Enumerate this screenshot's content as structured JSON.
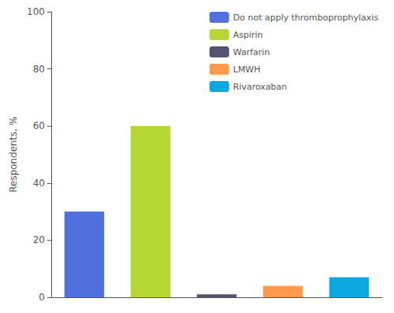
{
  "chart_data": {
    "type": "bar",
    "categories": [
      "Do not apply thromboprophylaxis",
      "Aspirin",
      "Warfarin",
      "LMWH",
      "Rivaroxaban"
    ],
    "values": [
      30,
      60,
      1,
      4,
      7
    ],
    "ylabel": "Respondents, %",
    "ylim": [
      0,
      100
    ],
    "yticks": [
      0,
      20,
      40,
      60,
      80,
      100
    ],
    "grid": false,
    "legend": "upper right",
    "tick_labels": "y"
  }
}
